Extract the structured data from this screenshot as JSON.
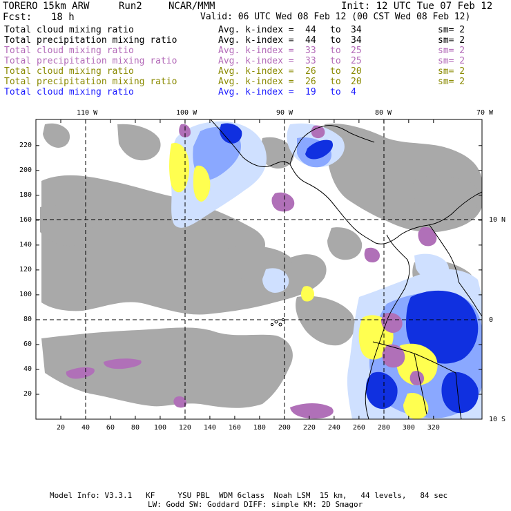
{
  "header": {
    "model": "TORERO",
    "resolution": "15km ARW",
    "run": "Run2",
    "org": "NCAR/MMM",
    "init": "Init: 12 UTC Tue 07 Feb 12",
    "fcst_label": "Fcst:",
    "fcst_value": "18 h",
    "valid": "Valid: 06 UTC Wed 08 Feb 12 (00 CST Wed 08 Feb 12)"
  },
  "fields": [
    {
      "name": "Total cloud mixing ratio",
      "avg": "Avg. k-index =",
      "k1": "44",
      "to": "to",
      "k2": "34",
      "sm": "sm= 2",
      "color": "#000000"
    },
    {
      "name": "Total precipitation mixing ratio",
      "avg": "Avg. k-index =",
      "k1": "44",
      "to": "to",
      "k2": "34",
      "sm": "sm= 2",
      "color": "#000000"
    },
    {
      "name": "Total cloud mixing ratio",
      "avg": "Avg. k-index =",
      "k1": "33",
      "to": "to",
      "k2": "25",
      "sm": "sm= 2",
      "color": "#b36ab8"
    },
    {
      "name": "Total precipitation mixing ratio",
      "avg": "Avg. k-index =",
      "k1": "33",
      "to": "to",
      "k2": "25",
      "sm": "sm= 2",
      "color": "#b36ab8"
    },
    {
      "name": "Total cloud mixing ratio",
      "avg": "Avg. k-index =",
      "k1": "26",
      "to": "to",
      "k2": "20",
      "sm": "sm= 2",
      "color": "#8a8a00"
    },
    {
      "name": "Total precipitation mixing ratio",
      "avg": "Avg. k-index =",
      "k1": "26",
      "to": "to",
      "k2": "20",
      "sm": "sm= 2",
      "color": "#8a8a00"
    },
    {
      "name": "Total cloud mixing ratio",
      "avg": "Avg. k-index =",
      "k1": "19",
      "to": "to",
      "k2": "4",
      "sm": "",
      "color": "#1a1aff"
    }
  ],
  "map": {
    "lon_labels": [
      "110 W",
      "100 W",
      "90 W",
      "80 W",
      "70 W"
    ],
    "lat_labels": [
      "10 N",
      "0",
      "10 S"
    ],
    "y_ticks": [
      "20",
      "40",
      "60",
      "80",
      "100",
      "120",
      "140",
      "160",
      "180",
      "200",
      "220"
    ],
    "x_ticks": [
      "20",
      "40",
      "60",
      "80",
      "100",
      "120",
      "140",
      "160",
      "180",
      "200",
      "220",
      "240",
      "260",
      "280",
      "300",
      "320"
    ],
    "colors": {
      "cloud_gray": "#a9a9a9",
      "precip_light_blue": "#cfe0ff",
      "precip_blue": "#8aa8ff",
      "precip_dark_blue": "#1030e0",
      "yellow": "#ffff50",
      "purple": "#b070b8",
      "coast": "#000000"
    }
  },
  "footer": {
    "line1": "Model Info: V3.3.1   KF     YSU PBL  WDM 6class  Noah LSM  15 km,   44 levels,   84 sec",
    "line2": "LW: Godd SW: Goddard DIFF: simple KM: 2D Smagor"
  }
}
